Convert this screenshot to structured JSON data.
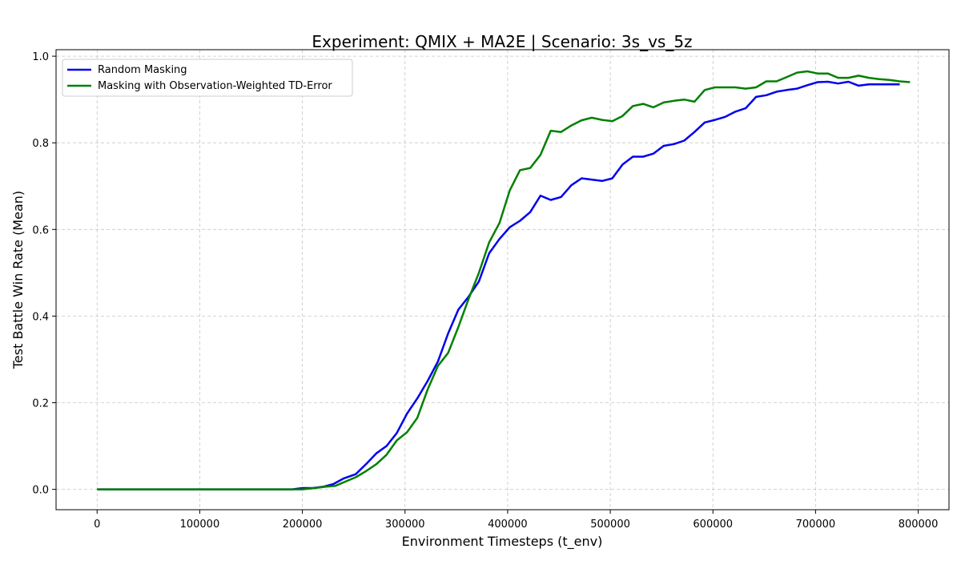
{
  "chart_data": {
    "type": "line",
    "title": "Experiment: QMIX + MA2E | Scenario: 3s_vs_5z",
    "xlabel": "Environment Timesteps (t_env)",
    "ylabel": "Test Battle Win Rate (Mean)",
    "xlim": [
      -40000,
      830000
    ],
    "ylim": [
      -0.047,
      1.015
    ],
    "xticks": [
      0,
      100000,
      200000,
      300000,
      400000,
      500000,
      600000,
      700000,
      800000
    ],
    "yticks": [
      0.0,
      0.2,
      0.4,
      0.6,
      0.8,
      1.0
    ],
    "xtick_labels": [
      "0",
      "100000",
      "200000",
      "300000",
      "400000",
      "500000",
      "600000",
      "700000",
      "800000"
    ],
    "ytick_labels": [
      "0.0",
      "0.2",
      "0.4",
      "0.6",
      "0.8",
      "1.0"
    ],
    "grid": true,
    "legend_position": "top-left",
    "series": [
      {
        "name": "Random Masking",
        "color": "#0000ee",
        "x": [
          0,
          50000,
          100000,
          150000,
          190000,
          200000,
          210000,
          220000,
          230000,
          240000,
          252000,
          262000,
          272000,
          282000,
          292000,
          302000,
          312000,
          322000,
          332000,
          342000,
          352000,
          362000,
          372000,
          382000,
          392000,
          402000,
          412000,
          422000,
          432000,
          442000,
          452000,
          462000,
          472000,
          482000,
          492000,
          502000,
          512000,
          522000,
          532000,
          542000,
          552000,
          562000,
          572000,
          582000,
          592000,
          602000,
          612000,
          622000,
          632000,
          642000,
          652000,
          662000,
          672000,
          682000,
          692000,
          702000,
          712000,
          722000,
          732000,
          742000,
          752000,
          762000,
          772000,
          782000
        ],
        "values": [
          0.0,
          0.0,
          0.0,
          0.0,
          0.0,
          0.003,
          0.003,
          0.006,
          0.012,
          0.025,
          0.035,
          0.058,
          0.083,
          0.1,
          0.13,
          0.175,
          0.21,
          0.25,
          0.295,
          0.36,
          0.415,
          0.445,
          0.48,
          0.545,
          0.578,
          0.605,
          0.62,
          0.64,
          0.678,
          0.668,
          0.675,
          0.702,
          0.718,
          0.715,
          0.712,
          0.718,
          0.75,
          0.768,
          0.768,
          0.775,
          0.793,
          0.797,
          0.805,
          0.825,
          0.847,
          0.853,
          0.86,
          0.872,
          0.88,
          0.906,
          0.91,
          0.918,
          0.922,
          0.925,
          0.933,
          0.94,
          0.941,
          0.937,
          0.941,
          0.932,
          0.935,
          0.935,
          0.935,
          0.935
        ]
      },
      {
        "name": "Masking with Observation-Weighted TD-Error",
        "color": "#008000",
        "x": [
          0,
          50000,
          100000,
          150000,
          200000,
          212000,
          222000,
          232000,
          242000,
          252000,
          262000,
          272000,
          282000,
          292000,
          302000,
          312000,
          322000,
          332000,
          342000,
          352000,
          362000,
          372000,
          382000,
          392000,
          402000,
          412000,
          422000,
          432000,
          442000,
          452000,
          462000,
          472000,
          482000,
          492000,
          502000,
          512000,
          522000,
          532000,
          542000,
          552000,
          562000,
          572000,
          582000,
          592000,
          602000,
          612000,
          622000,
          632000,
          642000,
          652000,
          662000,
          672000,
          682000,
          692000,
          702000,
          712000,
          722000,
          732000,
          742000,
          752000,
          762000,
          772000,
          782000,
          792000
        ],
        "values": [
          0.0,
          0.0,
          0.0,
          0.0,
          0.0,
          0.003,
          0.006,
          0.008,
          0.018,
          0.028,
          0.042,
          0.058,
          0.08,
          0.113,
          0.132,
          0.165,
          0.23,
          0.285,
          0.315,
          0.375,
          0.44,
          0.5,
          0.57,
          0.615,
          0.69,
          0.737,
          0.742,
          0.772,
          0.828,
          0.825,
          0.84,
          0.852,
          0.858,
          0.853,
          0.85,
          0.862,
          0.885,
          0.89,
          0.882,
          0.893,
          0.897,
          0.9,
          0.895,
          0.922,
          0.928,
          0.928,
          0.928,
          0.925,
          0.928,
          0.942,
          0.942,
          0.952,
          0.962,
          0.965,
          0.96,
          0.96,
          0.95,
          0.95,
          0.955,
          0.95,
          0.947,
          0.945,
          0.942,
          0.94
        ]
      }
    ]
  }
}
